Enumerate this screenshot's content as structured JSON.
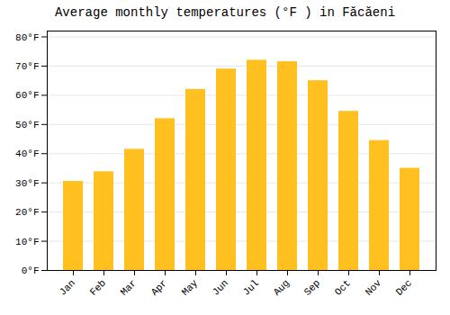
{
  "chart_data": {
    "type": "bar",
    "title": "Average monthly temperatures (°F ) in Făcăeni",
    "categories": [
      "Jan",
      "Feb",
      "Mar",
      "Apr",
      "May",
      "Jun",
      "Jul",
      "Aug",
      "Sep",
      "Oct",
      "Nov",
      "Dec"
    ],
    "values": [
      30.5,
      33.8,
      41.5,
      52.0,
      62.0,
      69.0,
      72.0,
      71.5,
      65.0,
      54.5,
      44.5,
      35.0
    ],
    "color": "#FFC020",
    "ylim": [
      0,
      82
    ],
    "yticks": [
      {
        "value": 0,
        "label": "0°F"
      },
      {
        "value": 10,
        "label": "10°F"
      },
      {
        "value": 20,
        "label": "20°F"
      },
      {
        "value": 30,
        "label": "30°F"
      },
      {
        "value": 40,
        "label": "40°F"
      },
      {
        "value": 50,
        "label": "50°F"
      },
      {
        "value": 60,
        "label": "60°F"
      },
      {
        "value": 70,
        "label": "70°F"
      },
      {
        "value": 80,
        "label": "80°F"
      }
    ],
    "grid": true
  }
}
